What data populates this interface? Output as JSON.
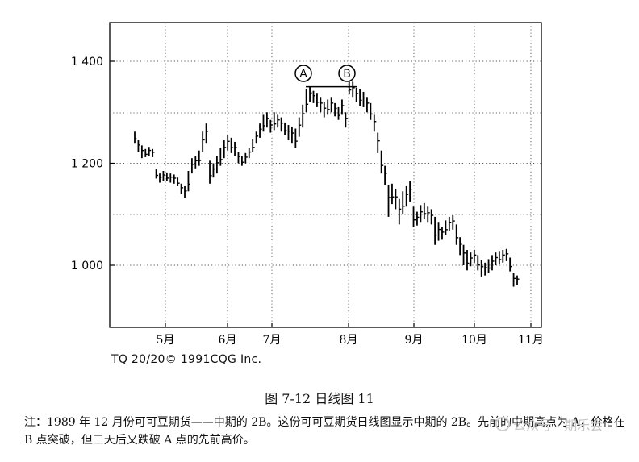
{
  "chart_data": {
    "type": "candlestick-bar",
    "yticks": [
      {
        "value": 1000,
        "label": "1 000"
      },
      {
        "value": 1200,
        "label": "1 200"
      },
      {
        "value": 1400,
        "label": "1 400"
      }
    ],
    "ylim": [
      880,
      1480
    ],
    "xticks": [
      "5月",
      "6月",
      "7月",
      "8月",
      "9月",
      "10月",
      "11月"
    ],
    "grid": "dotted",
    "markers": [
      {
        "label": "A",
        "price": 1350
      },
      {
        "label": "B",
        "price": 1350
      }
    ],
    "bars": [
      [
        1262,
        1240
      ],
      [
        1245,
        1222
      ],
      [
        1235,
        1210
      ],
      [
        1228,
        1212
      ],
      [
        1232,
        1215
      ],
      [
        1228,
        1212
      ],
      [
        1188,
        1170
      ],
      [
        1180,
        1162
      ],
      [
        1185,
        1165
      ],
      [
        1182,
        1165
      ],
      [
        1180,
        1162
      ],
      [
        1178,
        1160
      ],
      [
        1172,
        1155
      ],
      [
        1160,
        1140
      ],
      [
        1155,
        1132
      ],
      [
        1185,
        1145
      ],
      [
        1210,
        1180
      ],
      [
        1215,
        1190
      ],
      [
        1225,
        1195
      ],
      [
        1262,
        1222
      ],
      [
        1278,
        1240
      ],
      [
        1205,
        1160
      ],
      [
        1200,
        1172
      ],
      [
        1215,
        1180
      ],
      [
        1230,
        1195
      ],
      [
        1245,
        1210
      ],
      [
        1255,
        1225
      ],
      [
        1250,
        1220
      ],
      [
        1242,
        1215
      ],
      [
        1222,
        1200
      ],
      [
        1215,
        1195
      ],
      [
        1220,
        1200
      ],
      [
        1230,
        1210
      ],
      [
        1248,
        1222
      ],
      [
        1262,
        1240
      ],
      [
        1278,
        1250
      ],
      [
        1295,
        1262
      ],
      [
        1300,
        1270
      ],
      [
        1285,
        1260
      ],
      [
        1300,
        1265
      ],
      [
        1295,
        1270
      ],
      [
        1290,
        1262
      ],
      [
        1280,
        1255
      ],
      [
        1275,
        1245
      ],
      [
        1272,
        1240
      ],
      [
        1268,
        1230
      ],
      [
        1290,
        1252
      ],
      [
        1315,
        1270
      ],
      [
        1345,
        1300
      ],
      [
        1350,
        1320
      ],
      [
        1342,
        1318
      ],
      [
        1338,
        1310
      ],
      [
        1330,
        1300
      ],
      [
        1320,
        1290
      ],
      [
        1325,
        1295
      ],
      [
        1330,
        1300
      ],
      [
        1318,
        1292
      ],
      [
        1310,
        1285
      ],
      [
        1325,
        1295
      ],
      [
        1300,
        1270
      ],
      [
        1360,
        1335
      ],
      [
        1360,
        1330
      ],
      [
        1348,
        1320
      ],
      [
        1345,
        1312
      ],
      [
        1340,
        1310
      ],
      [
        1330,
        1300
      ],
      [
        1318,
        1285
      ],
      [
        1295,
        1262
      ],
      [
        1260,
        1220
      ],
      [
        1225,
        1180
      ],
      [
        1195,
        1158
      ],
      [
        1158,
        1095
      ],
      [
        1160,
        1120
      ],
      [
        1150,
        1110
      ],
      [
        1130,
        1080
      ],
      [
        1145,
        1100
      ],
      [
        1155,
        1115
      ],
      [
        1165,
        1125
      ],
      [
        1115,
        1075
      ],
      [
        1105,
        1078
      ],
      [
        1118,
        1085
      ],
      [
        1122,
        1090
      ],
      [
        1115,
        1085
      ],
      [
        1110,
        1080
      ],
      [
        1095,
        1040
      ],
      [
        1085,
        1048
      ],
      [
        1075,
        1050
      ],
      [
        1088,
        1060
      ],
      [
        1095,
        1068
      ],
      [
        1098,
        1070
      ],
      [
        1080,
        1040
      ],
      [
        1055,
        1020
      ],
      [
        1040,
        1000
      ],
      [
        1030,
        990
      ],
      [
        1025,
        998
      ],
      [
        1030,
        1005
      ],
      [
        1020,
        990
      ],
      [
        1010,
        978
      ],
      [
        1005,
        980
      ],
      [
        1012,
        985
      ],
      [
        1020,
        990
      ],
      [
        1025,
        1000
      ],
      [
        1028,
        1002
      ],
      [
        1030,
        1005
      ],
      [
        1032,
        1008
      ],
      [
        1015,
        988
      ],
      [
        985,
        958
      ],
      [
        980,
        962
      ]
    ]
  },
  "source_text": "TQ 20/20© 1991CQG Inc.",
  "figure_title": "图 7-12   日线图 11",
  "note": "注：1989 年 12 月份可可豆期货——中期的 2B。这份可可豆期货日线图显示中期的 2B。先前的中期高点为 A，价格在 B 点突破，但三天后又跌破 A 点的先前高价。",
  "watermark_text": "公众号 · 期乐会"
}
